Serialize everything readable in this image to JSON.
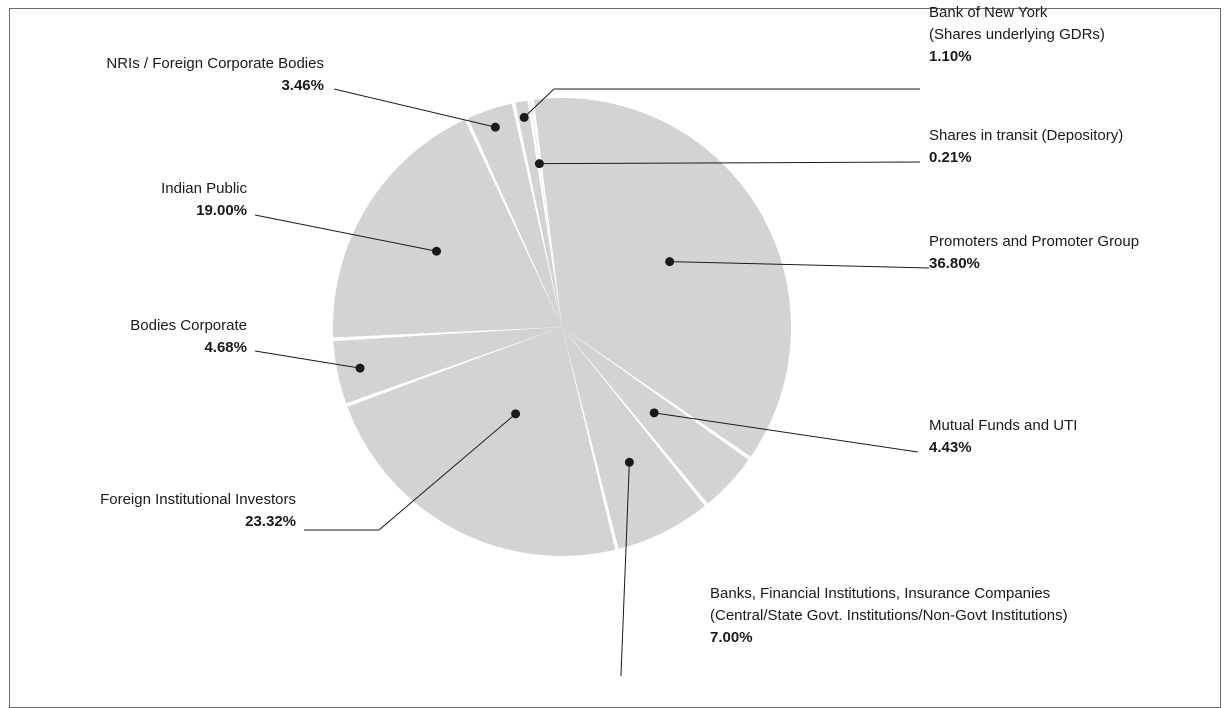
{
  "chart_data": {
    "type": "pie",
    "title": "",
    "slices": [
      {
        "label": [
          "Promoters and Promoter Group"
        ],
        "percent_label": "36.80%",
        "value": 36.8
      },
      {
        "label": [
          "Mutual Funds and UTI"
        ],
        "percent_label": "4.43%",
        "value": 4.43
      },
      {
        "label": [
          "Banks, Financial Institutions, Insurance Companies",
          "(Central/State Govt. Institutions/Non-Govt Institutions)"
        ],
        "percent_label": "7.00%",
        "value": 7.0
      },
      {
        "label": [
          "Foreign Institutional Investors"
        ],
        "percent_label": "23.32%",
        "value": 23.32
      },
      {
        "label": [
          "Bodies Corporate"
        ],
        "percent_label": "4.68%",
        "value": 4.68
      },
      {
        "label": [
          "Indian Public"
        ],
        "percent_label": "19.00%",
        "value": 19.0
      },
      {
        "label": [
          "NRIs / Foreign Corporate Bodies"
        ],
        "percent_label": "3.46%",
        "value": 3.46
      },
      {
        "label": [
          "Bank of New York",
          "(Shares underlying GDRs)"
        ],
        "percent_label": "1.10%",
        "value": 1.1
      },
      {
        "label": [
          "Shares in transit (Depository)"
        ],
        "percent_label": "0.21%",
        "value": 0.21
      }
    ],
    "slice_color": "#d3d3d3",
    "separator_color": "#ffffff",
    "text_color": "#1a1a1a"
  }
}
